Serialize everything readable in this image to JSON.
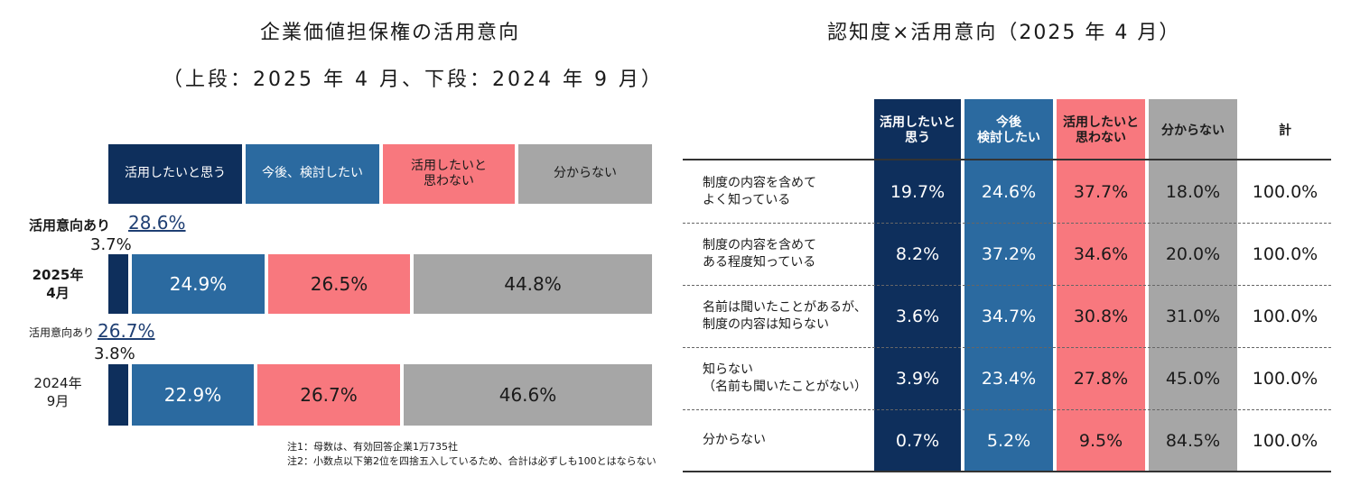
{
  "left_chart": {
    "title": "企業価値担保権の活用意向",
    "subtitle": "（上段：2025 年 4 月、下段：2024 年 9 月）",
    "legend": [
      {
        "label": "活用したいと思う",
        "color": "#0e2f5c"
      },
      {
        "label": "今後、検討したい",
        "color": "#2b6aa0"
      },
      {
        "label": "活用したいと\n思わない",
        "color": "#f8787e"
      },
      {
        "label": "分からない",
        "color": "#a6a6a6"
      }
    ],
    "rows": [
      {
        "label": "2025年\n4月",
        "intent_label": "活用意向あり",
        "intent_value": "28.6%",
        "small_pct": "3.7%",
        "segments": [
          "",
          "24.9%",
          "26.5%",
          "44.8%"
        ]
      },
      {
        "label": "2024年\n9月",
        "intent_label": "活用意向あり",
        "intent_value": "26.7%",
        "small_pct": "3.8%",
        "segments": [
          "",
          "22.9%",
          "26.7%",
          "46.6%"
        ]
      }
    ],
    "notes": [
      "注1：母数は、有効回答企業1万735社",
      "注2：小数点以下第2位を四捨五入しているため、合計は必ずしも100とはならない"
    ]
  },
  "chart_data": [
    {
      "type": "bar",
      "orientation": "horizontal-stacked",
      "title": "企業価値担保権の活用意向",
      "subtitle": "（上段：2025 年 4 月、下段：2024 年 9 月）",
      "categories": [
        "2025年4月",
        "2024年9月"
      ],
      "series": [
        {
          "name": "活用したいと思う",
          "values": [
            3.7,
            3.8
          ]
        },
        {
          "name": "今後、検討したい",
          "values": [
            24.9,
            22.9
          ]
        },
        {
          "name": "活用したいと思わない",
          "values": [
            26.5,
            26.7
          ]
        },
        {
          "name": "分からない",
          "values": [
            44.8,
            46.6
          ]
        }
      ],
      "annotations": [
        {
          "category": "2025年4月",
          "text": "活用意向あり 28.6%"
        },
        {
          "category": "2024年9月",
          "text": "活用意向あり 26.7%"
        }
      ],
      "unit": "%"
    },
    {
      "type": "table",
      "title": "認知度×活用意向（2025 年 4 月）",
      "columns": [
        "活用したいと思う",
        "今後検討したい",
        "活用したいと思わない",
        "分からない",
        "計"
      ],
      "rows": [
        "制度の内容を含めてよく知っている",
        "制度の内容を含めてある程度知っている",
        "名前は聞いたことがあるが、制度の内容は知らない",
        "知らない（名前も聞いたことがない）",
        "分からない"
      ],
      "values": [
        [
          19.7,
          24.6,
          37.7,
          18.0,
          100.0
        ],
        [
          8.2,
          37.2,
          34.6,
          20.0,
          100.0
        ],
        [
          3.6,
          34.7,
          30.8,
          31.0,
          100.0
        ],
        [
          3.9,
          23.4,
          27.8,
          45.0,
          100.0
        ],
        [
          0.7,
          5.2,
          9.5,
          84.5,
          100.0
        ]
      ],
      "unit": "%"
    }
  ],
  "right_table": {
    "title": "認知度×活用意向（2025 年 4 月）",
    "headers": [
      "活用したいと\n思う",
      "今後\n検討したい",
      "活用したいと\n思わない",
      "分からない",
      "計"
    ],
    "header_colors": [
      "#0e2f5c",
      "#2b6aa0",
      "#f8787e",
      "#a6a6a6",
      ""
    ],
    "rows": [
      {
        "label": "制度の内容を含めて\nよく知っている",
        "cells": [
          "19.7%",
          "24.6%",
          "37.7%",
          "18.0%",
          "100.0%"
        ]
      },
      {
        "label": "制度の内容を含めて\nある程度知っている",
        "cells": [
          "8.2%",
          "37.2%",
          "34.6%",
          "20.0%",
          "100.0%"
        ]
      },
      {
        "label": "名前は聞いたことがあるが、\n制度の内容は知らない",
        "cells": [
          "3.6%",
          "34.7%",
          "30.8%",
          "31.0%",
          "100.0%"
        ]
      },
      {
        "label": "知らない\n（名前も聞いたことがない）",
        "cells": [
          "3.9%",
          "23.4%",
          "27.8%",
          "45.0%",
          "100.0%"
        ]
      },
      {
        "label": "分からない",
        "cells": [
          "0.7%",
          "5.2%",
          "9.5%",
          "84.5%",
          "100.0%"
        ]
      }
    ]
  }
}
